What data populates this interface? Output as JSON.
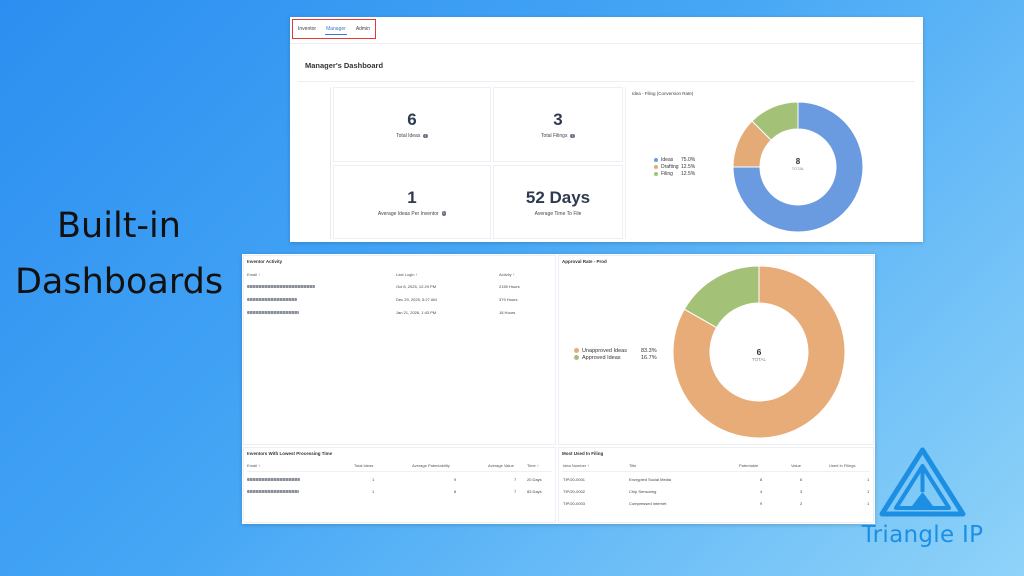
{
  "slide_title": "Built-in Dashboards",
  "tabs": [
    {
      "label": "Inventor"
    },
    {
      "label": "Manager"
    },
    {
      "label": "Admin"
    }
  ],
  "dashboard_title": "Manager's Dashboard",
  "stats": [
    {
      "value": "6",
      "label": "Total Ideas"
    },
    {
      "value": "3",
      "label": "Total Filings"
    },
    {
      "value": "1",
      "label": "Average Ideas Per Inventor"
    },
    {
      "value": "52 Days",
      "label": "Average Time To File"
    }
  ],
  "idea_filing_chart": {
    "title": "Idea - Filing (Conversion Rate)",
    "center_value": "8",
    "center_label": "TOTAL",
    "legend": [
      {
        "name": "Ideas",
        "pct": "75.0%"
      },
      {
        "name": "Drafting",
        "pct": "12.5%"
      },
      {
        "name": "Filing",
        "pct": "12.5%"
      }
    ]
  },
  "inventor_activity": {
    "title": "Inventor Activity",
    "headers": {
      "email": "Email ↑",
      "last_login": "Last Login ↑",
      "activity": "Activity ↑"
    },
    "rows": [
      {
        "last_login": "Oct 8, 2025, 12:29 PM",
        "activity": "2159 Hours"
      },
      {
        "last_login": "Dec 29, 2025, 5:27 AM",
        "activity": "379 Hours"
      },
      {
        "last_login": "Jan 21, 2026, 1:43 PM",
        "activity": "18 Hours"
      }
    ]
  },
  "approval_chart": {
    "title": "Approval Rate - Prod",
    "center_value": "6",
    "center_label": "TOTAL",
    "legend": [
      {
        "name": "Unapproved Ideas",
        "pct": "83.3%"
      },
      {
        "name": "Approved Ideas",
        "pct": "16.7%"
      }
    ]
  },
  "lowest_processing": {
    "title": "Inventors With Lowest Processing Time",
    "headers": {
      "email": "Email ↑",
      "total_ideas": "Total Ideas",
      "avg_pat": "Average Patentability",
      "avg_val": "Average Value",
      "time": "Time ↑"
    },
    "rows": [
      {
        "total_ideas": "1",
        "avg_pat": "9",
        "avg_val": "7",
        "time": "20 Days"
      },
      {
        "total_ideas": "1",
        "avg_pat": "8",
        "avg_val": "7",
        "time": "83 Days"
      }
    ]
  },
  "most_used": {
    "title": "Most Used In Filing",
    "headers": {
      "idea_number": "Idea Number ↑",
      "title": "Title",
      "patentable": "Patentable",
      "value": "Value",
      "used": "Used In Filings"
    },
    "rows": [
      {
        "idea_number": "TIP/20-0001",
        "title": "Encrypted Social Media",
        "patentable": "8",
        "value": "6",
        "used": "1"
      },
      {
        "idea_number": "TIP/20-0002",
        "title": "Chip Sensoring",
        "patentable": "4",
        "value": "3",
        "used": "1"
      },
      {
        "idea_number": "TIP/20-0003",
        "title": "Compressed Internet",
        "patentable": "9",
        "value": "2",
        "used": "1"
      }
    ]
  },
  "logo_text": "Triangle IP",
  "chart_data": [
    {
      "type": "pie",
      "title": "Idea - Filing (Conversion Rate)",
      "categories": [
        "Ideas",
        "Drafting",
        "Filing"
      ],
      "values": [
        75.0,
        12.5,
        12.5
      ],
      "colors": [
        "#6a9be0",
        "#e5ab76",
        "#a3c277"
      ],
      "legend": "left"
    },
    {
      "type": "pie",
      "title": "Approval Rate - Prod",
      "categories": [
        "Unapproved Ideas",
        "Approved Ideas"
      ],
      "values": [
        83.3,
        16.7
      ],
      "colors": [
        "#e8ac78",
        "#a3c277"
      ],
      "legend": "left"
    }
  ]
}
